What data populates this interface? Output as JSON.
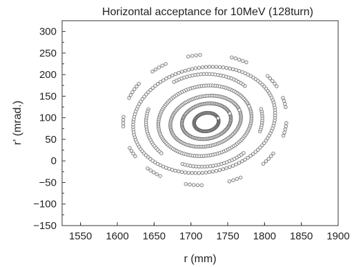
{
  "chart_data": {
    "type": "scatter",
    "title": "Horizontal acceptance for 10MeV (128turn)",
    "xlabel": "r (mm)",
    "ylabel": "r' (mrad.)",
    "xlim": [
      1525,
      1900
    ],
    "ylim": [
      -150,
      325
    ],
    "xticks": [
      "1550",
      "1600",
      "1650",
      "1700",
      "1750",
      "1800",
      "1850",
      "1900"
    ],
    "yticks": [
      "300",
      "250",
      "200",
      "150",
      "100",
      "50",
      "0",
      "−50",
      "−100",
      "−150"
    ],
    "grid": false,
    "legend": "none",
    "marker": "open-circle",
    "series": [
      {
        "shape": "ellipse",
        "points": 128,
        "center": [
          1721,
          90
        ],
        "semi_axis_r": 18,
        "semi_axis_rp": 22,
        "tilt_deg": 30,
        "segments": [
          [
            0,
            360
          ]
        ]
      },
      {
        "shape": "ellipse",
        "points": 128,
        "center": [
          1721,
          92
        ],
        "semi_axis_r": 36,
        "semi_axis_rp": 42,
        "tilt_deg": 30,
        "segments": [
          [
            0,
            360
          ]
        ]
      },
      {
        "shape": "ellipse",
        "points": 128,
        "center": [
          1720,
          92
        ],
        "semi_axis_r": 52,
        "semi_axis_rp": 60,
        "tilt_deg": 30,
        "segments": [
          [
            0,
            360
          ]
        ]
      },
      {
        "shape": "ellipse",
        "points": 128,
        "center": [
          1719,
          93
        ],
        "semi_axis_r": 68,
        "semi_axis_rp": 84,
        "tilt_deg": 30,
        "segments": [
          [
            0,
            360
          ]
        ]
      },
      {
        "shape": "ellipse",
        "points": 128,
        "center": [
          1718,
          94
        ],
        "semi_axis_r": 84,
        "semi_axis_rp": 112,
        "tilt_deg": 30,
        "segments": [
          [
            20,
            100
          ],
          [
            140,
            200
          ],
          [
            225,
            290
          ],
          [
            320,
            350
          ]
        ]
      },
      {
        "shape": "ellipse",
        "points": 128,
        "center": [
          1718,
          95
        ],
        "semi_axis_r": 104,
        "semi_axis_rp": 126,
        "tilt_deg": 30,
        "segments": [
          [
            0,
            360
          ]
        ]
      },
      {
        "shape": "ellipse",
        "points": 128,
        "center": [
          1719,
          95
        ],
        "semi_axis_r": 118,
        "semi_axis_rp": 158,
        "tilt_deg": 30,
        "segments": [
          [
            5,
            18
          ],
          [
            35,
            50
          ],
          [
            68,
            80
          ],
          [
            95,
            108
          ],
          [
            120,
            135
          ],
          [
            150,
            162
          ],
          [
            178,
            190
          ],
          [
            200,
            215
          ],
          [
            232,
            246
          ],
          [
            262,
            275
          ],
          [
            290,
            305
          ],
          [
            320,
            334
          ],
          [
            345,
            357
          ]
        ]
      }
    ]
  }
}
